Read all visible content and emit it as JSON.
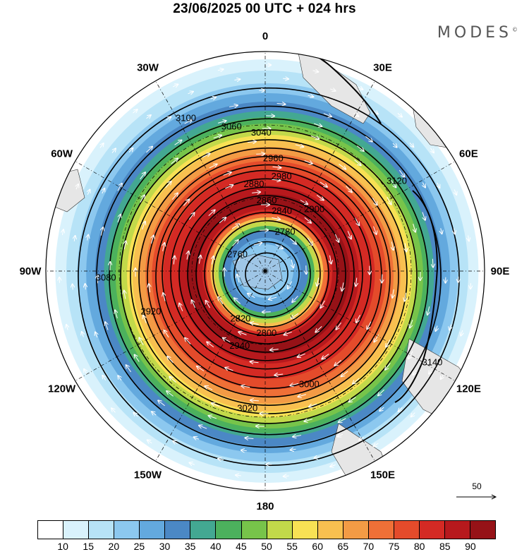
{
  "title": "23/06/2025  00 UTC  + 024 hrs",
  "brand": "MODES",
  "brand_mark": "©",
  "map": {
    "projection": "south-polar-stereographic",
    "longitude_labels": [
      {
        "text": "0",
        "lon": 0
      },
      {
        "text": "30E",
        "lon": 30
      },
      {
        "text": "60E",
        "lon": 60
      },
      {
        "text": "90E",
        "lon": 90
      },
      {
        "text": "120E",
        "lon": 120
      },
      {
        "text": "150E",
        "lon": 150
      },
      {
        "text": "180",
        "lon": 180
      },
      {
        "text": "150W",
        "lon": -150
      },
      {
        "text": "120W",
        "lon": -120
      },
      {
        "text": "90W",
        "lon": -90
      },
      {
        "text": "60W",
        "lon": -60
      },
      {
        "text": "30W",
        "lon": -30
      }
    ],
    "contour_labels": [
      "3100",
      "3060",
      "3040",
      "2960",
      "2980",
      "2900",
      "2880",
      "2860",
      "2840",
      "2820",
      "2800",
      "2780",
      "2760",
      "3080",
      "3120",
      "3140",
      "2940",
      "3020",
      "3000",
      "2920"
    ]
  },
  "legend": {
    "colors": [
      "#ffffff",
      "#d9f2fc",
      "#b7e3f7",
      "#8cc8ef",
      "#63a9de",
      "#4b88c5",
      "#43a892",
      "#4cb15d",
      "#77c44a",
      "#c2d94a",
      "#f8e154",
      "#f8c050",
      "#f39b45",
      "#ef7037",
      "#e44b2b",
      "#d42a24",
      "#b7191d",
      "#961217"
    ],
    "tick_labels": [
      "10",
      "15",
      "20",
      "25",
      "30",
      "35",
      "40",
      "45",
      "50",
      "55",
      "60",
      "65",
      "70",
      "75",
      "80",
      "85",
      "90"
    ]
  },
  "reference_vector": {
    "label": "50"
  }
}
